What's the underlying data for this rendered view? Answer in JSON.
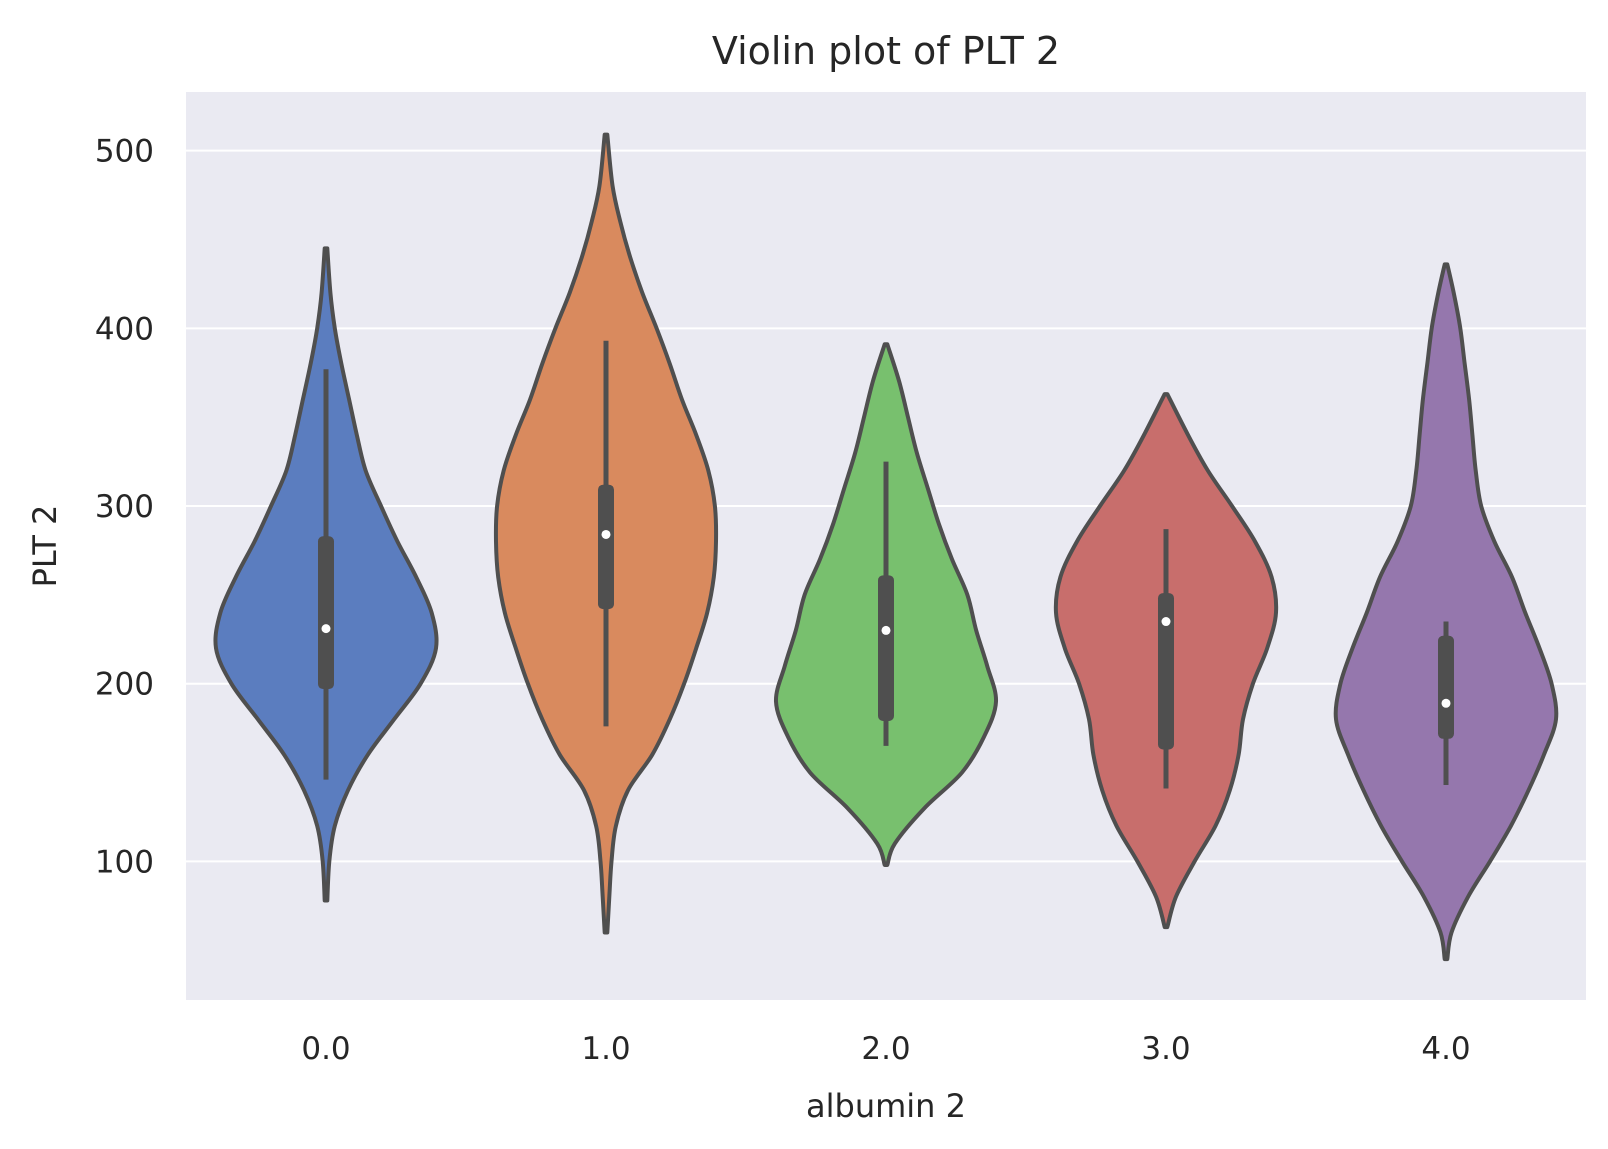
{
  "chart_data": {
    "type": "violin",
    "title": "Violin plot of PLT 2",
    "xlabel": "albumin 2",
    "ylabel": "PLT 2",
    "ylim": [
      22,
      533
    ],
    "yticks": [
      100,
      200,
      300,
      400,
      500
    ],
    "grid": true,
    "categories": [
      "0.0",
      "1.0",
      "2.0",
      "3.0",
      "4.0"
    ],
    "series": [
      {
        "category": "0.0",
        "color": "#5b7dbf",
        "min": 78,
        "max": 445,
        "whisker_low": 146,
        "whisker_high": 377,
        "q1": 197,
        "median": 231,
        "q3": 283,
        "density": [
          [
            78,
            0.0
          ],
          [
            100,
            0.03
          ],
          [
            120,
            0.08
          ],
          [
            140,
            0.2
          ],
          [
            160,
            0.38
          ],
          [
            180,
            0.62
          ],
          [
            200,
            0.86
          ],
          [
            220,
            1.0
          ],
          [
            240,
            0.96
          ],
          [
            260,
            0.82
          ],
          [
            280,
            0.65
          ],
          [
            300,
            0.5
          ],
          [
            320,
            0.36
          ],
          [
            340,
            0.28
          ],
          [
            360,
            0.21
          ],
          [
            380,
            0.14
          ],
          [
            400,
            0.08
          ],
          [
            420,
            0.04
          ],
          [
            445,
            0.0
          ]
        ]
      },
      {
        "category": "1.0",
        "color": "#d98a5e",
        "min": 60,
        "max": 509,
        "whisker_low": 176,
        "whisker_high": 393,
        "q1": 242,
        "median": 284,
        "q3": 312,
        "density": [
          [
            60,
            0.0
          ],
          [
            80,
            0.03
          ],
          [
            100,
            0.05
          ],
          [
            120,
            0.09
          ],
          [
            140,
            0.2
          ],
          [
            160,
            0.42
          ],
          [
            180,
            0.58
          ],
          [
            200,
            0.71
          ],
          [
            220,
            0.82
          ],
          [
            240,
            0.92
          ],
          [
            260,
            0.98
          ],
          [
            280,
            1.0
          ],
          [
            300,
            0.99
          ],
          [
            320,
            0.93
          ],
          [
            340,
            0.82
          ],
          [
            360,
            0.69
          ],
          [
            380,
            0.58
          ],
          [
            400,
            0.46
          ],
          [
            420,
            0.33
          ],
          [
            440,
            0.22
          ],
          [
            460,
            0.13
          ],
          [
            480,
            0.06
          ],
          [
            509,
            0.0
          ]
        ]
      },
      {
        "category": "2.0",
        "color": "#78c06e",
        "min": 98,
        "max": 391,
        "whisker_low": 165,
        "whisker_high": 325,
        "q1": 179,
        "median": 230,
        "q3": 261,
        "density": [
          [
            98,
            0.0
          ],
          [
            110,
            0.08
          ],
          [
            130,
            0.35
          ],
          [
            150,
            0.69
          ],
          [
            170,
            0.89
          ],
          [
            190,
            1.0
          ],
          [
            210,
            0.92
          ],
          [
            230,
            0.82
          ],
          [
            250,
            0.74
          ],
          [
            270,
            0.6
          ],
          [
            290,
            0.48
          ],
          [
            310,
            0.38
          ],
          [
            330,
            0.28
          ],
          [
            350,
            0.2
          ],
          [
            370,
            0.12
          ],
          [
            391,
            0.0
          ]
        ]
      },
      {
        "category": "3.0",
        "color": "#c86e6c",
        "min": 63,
        "max": 363,
        "whisker_low": 141,
        "whisker_high": 287,
        "q1": 163,
        "median": 235,
        "q3": 251,
        "density": [
          [
            63,
            0.0
          ],
          [
            80,
            0.09
          ],
          [
            100,
            0.26
          ],
          [
            120,
            0.45
          ],
          [
            140,
            0.58
          ],
          [
            160,
            0.66
          ],
          [
            180,
            0.7
          ],
          [
            200,
            0.79
          ],
          [
            220,
            0.92
          ],
          [
            240,
            1.0
          ],
          [
            260,
            0.96
          ],
          [
            280,
            0.81
          ],
          [
            300,
            0.6
          ],
          [
            320,
            0.38
          ],
          [
            340,
            0.2
          ],
          [
            363,
            0.0
          ]
        ]
      },
      {
        "category": "4.0",
        "color": "#9577ad",
        "min": 45,
        "max": 436,
        "whisker_low": 143,
        "whisker_high": 235,
        "q1": 169,
        "median": 189,
        "q3": 227,
        "density": [
          [
            45,
            0.0
          ],
          [
            60,
            0.05
          ],
          [
            80,
            0.2
          ],
          [
            100,
            0.4
          ],
          [
            120,
            0.59
          ],
          [
            140,
            0.75
          ],
          [
            160,
            0.89
          ],
          [
            180,
            1.0
          ],
          [
            200,
            0.96
          ],
          [
            220,
            0.85
          ],
          [
            240,
            0.72
          ],
          [
            260,
            0.6
          ],
          [
            280,
            0.44
          ],
          [
            300,
            0.32
          ],
          [
            320,
            0.27
          ],
          [
            340,
            0.24
          ],
          [
            360,
            0.21
          ],
          [
            380,
            0.17
          ],
          [
            400,
            0.13
          ],
          [
            420,
            0.07
          ],
          [
            436,
            0.0
          ]
        ]
      }
    ]
  }
}
